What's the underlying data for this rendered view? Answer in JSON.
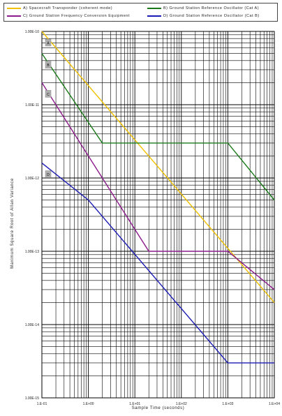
{
  "legend": {
    "items": [
      {
        "label": "A) Spacecraft Transponder (coherent mode)",
        "color": "#f0c000"
      },
      {
        "label": "B) Ground Station Reference Oscillator (Cat A)",
        "color": "#1a7a1a"
      },
      {
        "label": "C) Ground Station Frequency Conversion Equipment",
        "color": "#8b1a8b"
      },
      {
        "label": "D) Ground Station Reference Oscillator (Cat B)",
        "color": "#1a1ab4"
      }
    ]
  },
  "chart_data": {
    "type": "line",
    "xscale": "log",
    "yscale": "log",
    "xlim": [
      0.1,
      10000
    ],
    "ylim": [
      1e-15,
      1e-10
    ],
    "xlabel": "Sample Time (seconds)",
    "ylabel": "Maximum Square Root of Allan Variance",
    "xticks": [
      "1.E-01",
      "1.E+00",
      "1.E+01",
      "1.E+02",
      "1.E+03",
      "1.E+04"
    ],
    "yticks": [
      "1.00E-10",
      "1.00E-11",
      "1.00E-12",
      "1.00E-13",
      "1.00E-14",
      "1.00E-15"
    ],
    "grid": true,
    "legend_position": "top",
    "series": [
      {
        "key": "A",
        "color": "#f0c000",
        "x": [
          0.1,
          10000
        ],
        "y": [
          1e-10,
          2e-14
        ]
      },
      {
        "key": "B",
        "color": "#1a7a1a",
        "x": [
          0.1,
          2,
          1000,
          10000
        ],
        "y": [
          5e-11,
          3e-12,
          3e-12,
          5e-13
        ]
      },
      {
        "key": "C",
        "color": "#8b1a8b",
        "x": [
          0.1,
          20,
          1000,
          10000
        ],
        "y": [
          2e-11,
          1e-13,
          1e-13,
          3e-14
        ]
      },
      {
        "key": "D",
        "color": "#1a1ab4",
        "x": [
          0.1,
          1,
          1000,
          10000
        ],
        "y": [
          1.6e-12,
          5e-13,
          3e-15,
          3e-15
        ]
      }
    ]
  }
}
